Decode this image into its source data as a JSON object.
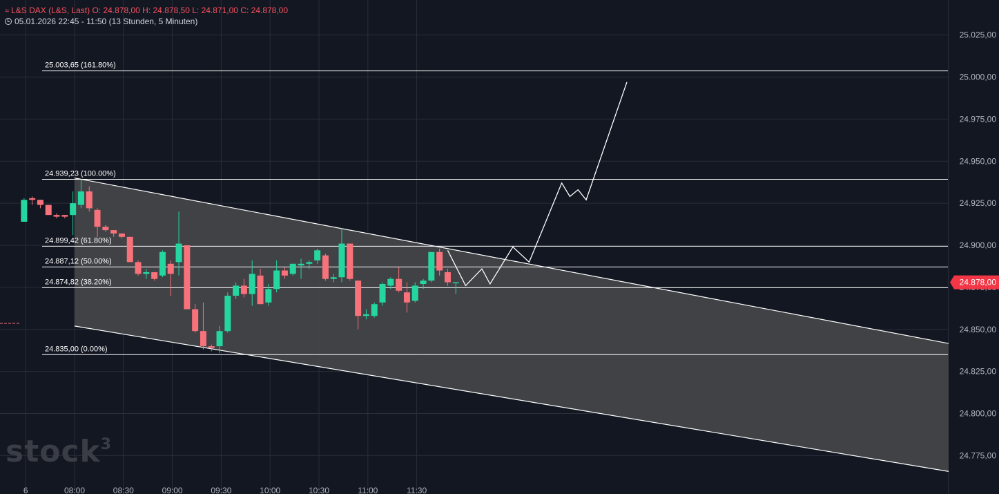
{
  "header": {
    "symbol": "L&S DAX (L&S, Last)",
    "open": "O: 24.878,00",
    "high": "H: 24.878,50",
    "low": "L: 24.871,00",
    "close": "C: 24.878,00",
    "range": "05.01.2026 22:45 - 11:50",
    "interval": "(13 Stunden, 5 Minuten)"
  },
  "watermark": {
    "text": "stock",
    "sup": "3"
  },
  "colors": {
    "background": "#131722",
    "up": "#26d6a0",
    "down": "#f7727a",
    "channel_fill": "#434549",
    "lines": "#ffffff",
    "price_label": "#f23645"
  },
  "chart_data": {
    "type": "candlestick",
    "title": "",
    "y_axis": {
      "range": [
        24765,
        25035
      ],
      "ticks": [
        "25.025,00",
        "25.000,00",
        "24.975,00",
        "24.950,00",
        "24.925,00",
        "24.900,00",
        "24.875,00",
        "24.850,00",
        "24.825,00",
        "24.800,00",
        "24.775,00"
      ],
      "tick_values": [
        25025,
        25000,
        24975,
        24950,
        24925,
        24900,
        24875,
        24850,
        24825,
        24800,
        24775
      ]
    },
    "x_axis": {
      "ticks": [
        "6",
        "08:00",
        "08:30",
        "09:00",
        "09:30",
        "10:00",
        "10:30",
        "11:00",
        "11:30"
      ],
      "tick_times_min": [
        450,
        480,
        510,
        540,
        570,
        600,
        630,
        660,
        690
      ]
    },
    "current_price": {
      "label": "24.878,00",
      "value": 24878
    },
    "candles": [
      {
        "t": 449,
        "o": 24914,
        "h": 24928,
        "l": 24914,
        "c": 24927
      },
      {
        "t": 454,
        "o": 24928,
        "h": 24929,
        "l": 24924,
        "c": 24927
      },
      {
        "t": 459,
        "o": 24927,
        "h": 24927,
        "l": 24922,
        "c": 24924
      },
      {
        "t": 464,
        "o": 24924,
        "h": 24924,
        "l": 24918,
        "c": 24918
      },
      {
        "t": 469,
        "o": 24918,
        "h": 24919,
        "l": 24916,
        "c": 24917
      },
      {
        "t": 474,
        "o": 24918,
        "h": 24918,
        "l": 24916,
        "c": 24917
      },
      {
        "t": 479,
        "o": 24918,
        "h": 24932,
        "l": 24906,
        "c": 24925
      },
      {
        "t": 484,
        "o": 24924,
        "h": 24939,
        "l": 24922,
        "c": 24932
      },
      {
        "t": 489,
        "o": 24932,
        "h": 24935,
        "l": 24920,
        "c": 24922
      },
      {
        "t": 494,
        "o": 24921,
        "h": 24922,
        "l": 24905,
        "c": 24911
      },
      {
        "t": 499,
        "o": 24911,
        "h": 24912,
        "l": 24908,
        "c": 24909
      },
      {
        "t": 504,
        "o": 24909,
        "h": 24909,
        "l": 24905,
        "c": 24907
      },
      {
        "t": 509,
        "o": 24907,
        "h": 24907,
        "l": 24904,
        "c": 24905
      },
      {
        "t": 514,
        "o": 24905,
        "h": 24905,
        "l": 24890,
        "c": 24890
      },
      {
        "t": 519,
        "o": 24890,
        "h": 24891,
        "l": 24882,
        "c": 24883
      },
      {
        "t": 524,
        "o": 24883,
        "h": 24886,
        "l": 24880,
        "c": 24884
      },
      {
        "t": 529,
        "o": 24884,
        "h": 24884,
        "l": 24879,
        "c": 24880
      },
      {
        "t": 534,
        "o": 24882,
        "h": 24897,
        "l": 24881,
        "c": 24896
      },
      {
        "t": 539,
        "o": 24889,
        "h": 24891,
        "l": 24870,
        "c": 24883
      },
      {
        "t": 544,
        "o": 24890,
        "h": 24920,
        "l": 24882,
        "c": 24901
      },
      {
        "t": 549,
        "o": 24900,
        "h": 24900,
        "l": 24862,
        "c": 24862
      },
      {
        "t": 554,
        "o": 24862,
        "h": 24865,
        "l": 24848,
        "c": 24849
      },
      {
        "t": 559,
        "o": 24849,
        "h": 24866,
        "l": 24838,
        "c": 24840
      },
      {
        "t": 564,
        "o": 24840,
        "h": 24841,
        "l": 24837,
        "c": 24839
      },
      {
        "t": 569,
        "o": 24840,
        "h": 24852,
        "l": 24836,
        "c": 24849
      },
      {
        "t": 574,
        "o": 24849,
        "h": 24872,
        "l": 24848,
        "c": 24870
      },
      {
        "t": 579,
        "o": 24870,
        "h": 24878,
        "l": 24868,
        "c": 24876
      },
      {
        "t": 584,
        "o": 24876,
        "h": 24880,
        "l": 24869,
        "c": 24871
      },
      {
        "t": 589,
        "o": 24871,
        "h": 24891,
        "l": 24864,
        "c": 24883
      },
      {
        "t": 594,
        "o": 24882,
        "h": 24886,
        "l": 24865,
        "c": 24865
      },
      {
        "t": 599,
        "o": 24866,
        "h": 24877,
        "l": 24864,
        "c": 24874
      },
      {
        "t": 604,
        "o": 24874,
        "h": 24891,
        "l": 24872,
        "c": 24885
      },
      {
        "t": 609,
        "o": 24885,
        "h": 24887,
        "l": 24880,
        "c": 24882
      },
      {
        "t": 614,
        "o": 24883,
        "h": 24889,
        "l": 24882,
        "c": 24889
      },
      {
        "t": 619,
        "o": 24888,
        "h": 24892,
        "l": 24880,
        "c": 24889
      },
      {
        "t": 624,
        "o": 24889,
        "h": 24891,
        "l": 24886,
        "c": 24890
      },
      {
        "t": 629,
        "o": 24891,
        "h": 24898,
        "l": 24889,
        "c": 24897
      },
      {
        "t": 634,
        "o": 24894,
        "h": 24895,
        "l": 24879,
        "c": 24880
      },
      {
        "t": 639,
        "o": 24880,
        "h": 24883,
        "l": 24878,
        "c": 24881
      },
      {
        "t": 644,
        "o": 24881,
        "h": 24910,
        "l": 24878,
        "c": 24901
      },
      {
        "t": 649,
        "o": 24901,
        "h": 24901,
        "l": 24879,
        "c": 24880
      },
      {
        "t": 654,
        "o": 24879,
        "h": 24879,
        "l": 24850,
        "c": 24858
      },
      {
        "t": 659,
        "o": 24858,
        "h": 24862,
        "l": 24856,
        "c": 24859
      },
      {
        "t": 664,
        "o": 24858,
        "h": 24866,
        "l": 24857,
        "c": 24865
      },
      {
        "t": 669,
        "o": 24866,
        "h": 24878,
        "l": 24864,
        "c": 24877
      },
      {
        "t": 674,
        "o": 24876,
        "h": 24881,
        "l": 24874,
        "c": 24880
      },
      {
        "t": 679,
        "o": 24880,
        "h": 24887,
        "l": 24872,
        "c": 24873
      },
      {
        "t": 684,
        "o": 24872,
        "h": 24878,
        "l": 24860,
        "c": 24866
      },
      {
        "t": 689,
        "o": 24867,
        "h": 24878,
        "l": 24866,
        "c": 24876
      },
      {
        "t": 694,
        "o": 24877,
        "h": 24880,
        "l": 24874,
        "c": 24879
      },
      {
        "t": 699,
        "o": 24879,
        "h": 24896,
        "l": 24878,
        "c": 24896
      },
      {
        "t": 704,
        "o": 24896,
        "h": 24898,
        "l": 24882,
        "c": 24885
      },
      {
        "t": 709,
        "o": 24884,
        "h": 24886,
        "l": 24876,
        "c": 24878
      },
      {
        "t": 714,
        "o": 24878,
        "h": 24878,
        "l": 24871,
        "c": 24878
      }
    ],
    "fibonacci_levels": [
      {
        "label": "25.003,65 (161.80%)",
        "value": 25003.65
      },
      {
        "label": "24.939,23 (100.00%)",
        "value": 24939.23
      },
      {
        "label": "24.899,42 (61.80%)",
        "value": 24899.42
      },
      {
        "label": "24.887,12 (50.00%)",
        "value": 24887.12
      },
      {
        "label": "24.874,82 (38.20%)",
        "value": 24874.82
      },
      {
        "label": "24.835,00 (0.00%)",
        "value": 24835.0
      }
    ],
    "channel": {
      "upper": [
        {
          "t": 480,
          "v": 24940
        },
        {
          "t": 1020,
          "v": 24841
        }
      ],
      "lower": [
        {
          "t": 480,
          "v": 24852
        },
        {
          "t": 1020,
          "v": 24765
        }
      ]
    },
    "projection_path": [
      {
        "t": 709,
        "v": 24897
      },
      {
        "t": 720,
        "v": 24876
      },
      {
        "t": 730,
        "v": 24886
      },
      {
        "t": 735,
        "v": 24877
      },
      {
        "t": 749,
        "v": 24899
      },
      {
        "t": 759,
        "v": 24890
      },
      {
        "t": 779,
        "v": 24937
      },
      {
        "t": 784,
        "v": 24929
      },
      {
        "t": 789,
        "v": 24933
      },
      {
        "t": 794,
        "v": 24927
      },
      {
        "t": 819,
        "v": 24997
      }
    ],
    "grid": true
  }
}
